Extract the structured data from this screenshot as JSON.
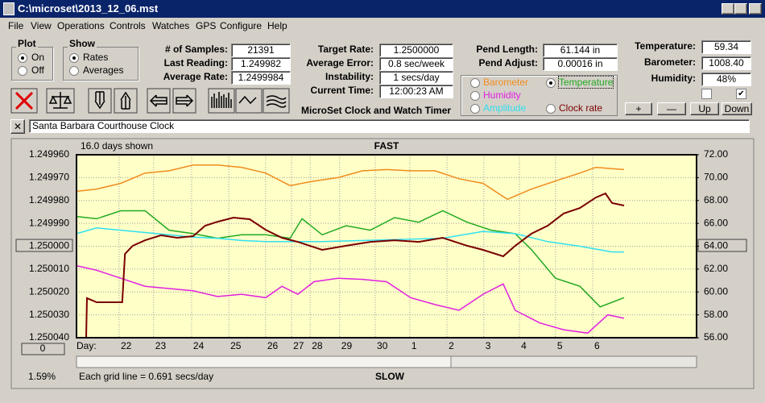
{
  "window": {
    "title": "C:\\microset\\2013_12_06.mst"
  },
  "menu": [
    "File",
    "View",
    "Operations",
    "Controls",
    "Watches",
    "GPS",
    "Configure",
    "Help"
  ],
  "plot": {
    "label": "Plot",
    "options": [
      "On",
      "Off"
    ]
  },
  "show": {
    "label": "Show",
    "options": [
      "Rates",
      "Averages"
    ]
  },
  "fields": [
    {
      "label": "# of Samples:",
      "value": "21391"
    },
    {
      "label": "Last Reading:",
      "value": "1.249982"
    },
    {
      "label": "Average Rate:",
      "value": "1.2499984"
    },
    {
      "label": "Target Rate:",
      "value": "1.2500000"
    },
    {
      "label": "Average Error:",
      "value": "0.8 sec/week"
    },
    {
      "label": "Instability:",
      "value": "1 secs/day"
    },
    {
      "label": "Current Time:",
      "value": "12:00:23 AM"
    },
    {
      "label": "Pend Length:",
      "value": "61.144 in"
    },
    {
      "label": "Pend Adjust:",
      "value": "0.00016 in"
    },
    {
      "label": "Temperature:",
      "value": "59.34"
    },
    {
      "label": "Barometer:",
      "value": "1008.40"
    },
    {
      "label": "Humidity:",
      "value": "48%"
    }
  ],
  "app_name": "MicroSet Clock and Watch Timer",
  "buttons": [
    "+",
    "—",
    "Up",
    "Down"
  ],
  "clock_name": "Santa Barbara Courthouse Clock",
  "chart_data": {
    "type": "line",
    "title": "FAST",
    "subtitle": "SLOW",
    "days_shown": "16.0 days shown",
    "grid_note": "Each grid line = 0.691 secs/day",
    "percent": "1.59%",
    "offset": "0",
    "x_label": "Day:",
    "xlim": [
      0,
      16
    ],
    "xticks": [
      {
        "value": 1.1,
        "label": "22"
      },
      {
        "value": 1.99,
        "label": "23"
      },
      {
        "value": 2.97,
        "label": "24"
      },
      {
        "value": 3.93,
        "label": "25"
      },
      {
        "value": 4.88,
        "label": "26"
      },
      {
        "value": 5.55,
        "label": "27"
      },
      {
        "value": 6.03,
        "label": "28"
      },
      {
        "value": 6.79,
        "label": "29"
      },
      {
        "value": 7.71,
        "label": "30"
      },
      {
        "value": 8.6,
        "label": "1"
      },
      {
        "value": 9.56,
        "label": "2"
      },
      {
        "value": 10.51,
        "label": "3"
      },
      {
        "value": 11.43,
        "label": "4"
      },
      {
        "value": 12.36,
        "label": "5"
      },
      {
        "value": 13.32,
        "label": "6"
      }
    ],
    "ylim": [
      1.25004,
      1.24996
    ],
    "yticks": [
      {
        "value": 1.24996,
        "label": "1.249960"
      },
      {
        "value": 1.24997,
        "label": "1.249970"
      },
      {
        "value": 1.24998,
        "label": "1.249980"
      },
      {
        "value": 1.24999,
        "label": "1.249990"
      },
      {
        "value": 1.25,
        "label": "1.250000"
      },
      {
        "value": 1.25001,
        "label": "1.250010"
      },
      {
        "value": 1.25002,
        "label": "1.250020"
      },
      {
        "value": 1.25003,
        "label": "1.250030"
      },
      {
        "value": 1.25004,
        "label": "1.250040"
      }
    ],
    "y2lim": [
      56,
      72
    ],
    "y2ticks": [
      {
        "value": 72,
        "label": "72.00"
      },
      {
        "value": 70,
        "label": "70.00"
      },
      {
        "value": 68,
        "label": "68.00"
      },
      {
        "value": 66,
        "label": "66.00"
      },
      {
        "value": 64,
        "label": "64.00"
      },
      {
        "value": 62,
        "label": "62.00"
      },
      {
        "value": 60,
        "label": "60.00"
      },
      {
        "value": 58,
        "label": "58.00"
      },
      {
        "value": 56,
        "label": "56.00"
      }
    ],
    "grid": true,
    "series": [
      {
        "name": "Barometer",
        "color": "#f08c1e",
        "axis": "y2",
        "x": [
          0,
          0.52,
          1.14,
          1.77,
          2.39,
          3.01,
          3.64,
          4.26,
          4.88,
          5.51,
          6.13,
          6.75,
          7.38,
          8.0,
          8.62,
          9.25,
          9.87,
          10.49,
          11.12,
          11.74,
          12.36,
          12.99,
          13.4,
          14.13
        ],
        "values": [
          68.8,
          69.0,
          69.5,
          70.4,
          70.6,
          71.1,
          71.1,
          70.9,
          70.4,
          69.3,
          69.7,
          70.0,
          70.6,
          70.7,
          70.6,
          70.6,
          69.9,
          69.5,
          68.1,
          69.0,
          69.7,
          70.4,
          70.9,
          70.7
        ]
      },
      {
        "name": "Temperature",
        "color": "#22aa22",
        "axis": "y2",
        "x": [
          0,
          0.52,
          1.14,
          1.77,
          2.39,
          3.01,
          3.64,
          4.26,
          4.88,
          5.51,
          5.82,
          6.34,
          6.96,
          7.58,
          8.21,
          8.83,
          9.45,
          10.08,
          10.7,
          11.32,
          11.74,
          12.36,
          12.99,
          13.51,
          14.13
        ],
        "values": [
          66.6,
          66.4,
          67.1,
          67.1,
          65.4,
          65.1,
          64.7,
          65.0,
          65.0,
          64.7,
          66.4,
          65.0,
          65.8,
          65.4,
          66.5,
          66.1,
          67.1,
          66.1,
          65.4,
          65.1,
          63.7,
          61.2,
          60.5,
          58.7,
          59.5
        ]
      },
      {
        "name": "Humidity",
        "color": "#e020e0",
        "axis": "y2",
        "x": [
          0,
          0.52,
          1.14,
          1.77,
          2.39,
          3.01,
          3.64,
          4.26,
          4.88,
          5.3,
          5.71,
          6.13,
          6.75,
          7.38,
          8.0,
          8.62,
          9.25,
          9.87,
          10.49,
          11.01,
          11.32,
          11.95,
          12.57,
          13.19,
          13.71,
          14.13
        ],
        "values": [
          62.3,
          61.9,
          61.2,
          60.5,
          60.3,
          60.1,
          59.6,
          59.8,
          59.5,
          60.5,
          59.8,
          60.9,
          61.2,
          61.1,
          60.9,
          59.5,
          58.9,
          58.4,
          59.8,
          60.7,
          58.4,
          57.3,
          56.7,
          56.4,
          58.0,
          57.7
        ]
      },
      {
        "name": "Amplitude",
        "color": "#30e0f0",
        "axis": "y2",
        "x": [
          0,
          0.52,
          1.14,
          1.77,
          2.39,
          3.01,
          3.64,
          4.26,
          4.88,
          5.51,
          6.34,
          7.38,
          8.42,
          9.45,
          10.49,
          11.32,
          12.16,
          12.99,
          13.82,
          14.13
        ],
        "values": [
          65.1,
          65.6,
          65.4,
          65.2,
          65.0,
          64.8,
          64.7,
          64.5,
          64.4,
          64.4,
          64.4,
          64.5,
          64.6,
          64.7,
          65.3,
          65.1,
          64.4,
          64.0,
          63.5,
          63.5
        ]
      },
      {
        "name": "Clock rate",
        "color": "#7a0000",
        "x": [
          0.25,
          0.27,
          0.52,
          0.94,
          1.18,
          1.25,
          1.45,
          1.77,
          2.18,
          2.6,
          3.01,
          3.32,
          3.64,
          4.05,
          4.47,
          4.88,
          5.3,
          5.71,
          6.34,
          6.96,
          7.58,
          8.21,
          8.83,
          9.45,
          10.08,
          10.49,
          11.01,
          11.32,
          11.74,
          12.16,
          12.57,
          12.99,
          13.4,
          13.65,
          13.82,
          14.13
        ],
        "values": [
          1.25004,
          1.2500227,
          1.2500245,
          1.2500245,
          1.2500245,
          1.2500034,
          1.2499998,
          1.2499974,
          1.2499952,
          1.2499963,
          1.2499956,
          1.249991,
          1.2499893,
          1.2499875,
          1.2499882,
          1.2499928,
          1.2499963,
          1.2499981,
          1.2500016,
          1.2499998,
          1.2499981,
          1.2499974,
          1.2499981,
          1.2499963,
          1.2499998,
          1.2500016,
          1.2500044,
          1.2499998,
          1.2499945,
          1.249991,
          1.2499857,
          1.2499833,
          1.2499787,
          1.2499769,
          1.2499811,
          1.2499822
        ]
      }
    ]
  }
}
